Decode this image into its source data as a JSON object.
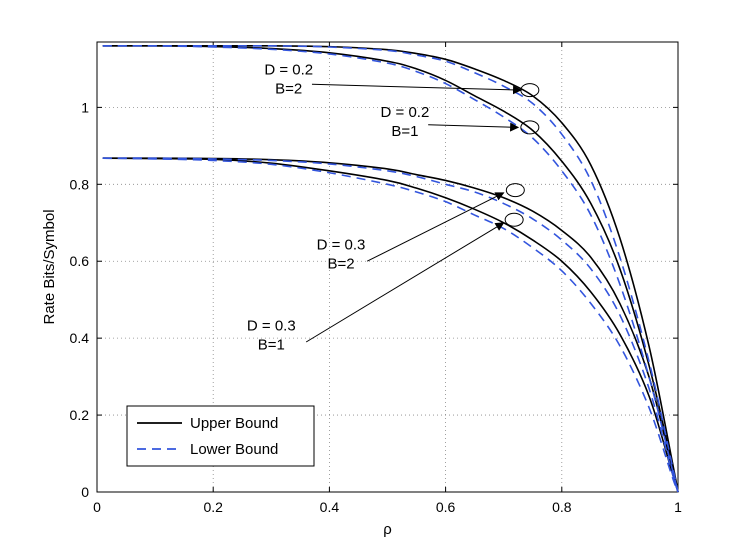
{
  "chart_data": {
    "type": "line",
    "xlabel": "ρ",
    "ylabel": "Rate Bits/Symbol",
    "xlim": [
      0,
      1
    ],
    "ylim": [
      0,
      1.17
    ],
    "x_ticks": [
      0,
      0.2,
      0.4,
      0.6,
      0.8,
      1
    ],
    "x_tick_labels": [
      "0",
      "0.2",
      "0.4",
      "0.6",
      "0.8",
      "1"
    ],
    "y_ticks": [
      0,
      0.2,
      0.4,
      0.6,
      0.8,
      1
    ],
    "y_tick_labels": [
      "0",
      "0.2",
      "0.4",
      "0.6",
      "0.8",
      "1"
    ],
    "grid": true,
    "legend_position": "bottom-left",
    "legend": [
      {
        "label": "Upper Bound",
        "style": "solid",
        "color": "#000000"
      },
      {
        "label": "Lower Bound",
        "style": "dashed",
        "color": "#3355dd"
      }
    ],
    "x": [
      0.01,
      0.1,
      0.2,
      0.3,
      0.4,
      0.5,
      0.55,
      0.6,
      0.65,
      0.7,
      0.75,
      0.8,
      0.85,
      0.9,
      0.95,
      0.99,
      1.0
    ],
    "series": [
      {
        "style": "solid",
        "color": "#000000",
        "values": [
          1.16,
          1.16,
          1.16,
          1.16,
          1.158,
          1.15,
          1.14,
          1.125,
          1.1,
          1.07,
          1.03,
          0.96,
          0.85,
          0.66,
          0.38,
          0.08,
          0.0
        ]
      },
      {
        "style": "solid",
        "color": "#000000",
        "values": [
          1.16,
          1.16,
          1.158,
          1.153,
          1.142,
          1.12,
          1.1,
          1.07,
          1.03,
          0.99,
          0.94,
          0.86,
          0.75,
          0.58,
          0.33,
          0.07,
          0.0
        ]
      },
      {
        "style": "solid",
        "color": "#000000",
        "values": [
          0.868,
          0.868,
          0.867,
          0.864,
          0.856,
          0.84,
          0.825,
          0.81,
          0.79,
          0.765,
          0.73,
          0.68,
          0.61,
          0.49,
          0.3,
          0.06,
          0.0
        ]
      },
      {
        "style": "solid",
        "color": "#000000",
        "values": [
          0.868,
          0.867,
          0.865,
          0.855,
          0.835,
          0.81,
          0.79,
          0.765,
          0.735,
          0.7,
          0.655,
          0.6,
          0.52,
          0.41,
          0.25,
          0.05,
          0.0
        ]
      },
      {
        "style": "dashed",
        "color": "#3355dd",
        "values": [
          1.16,
          1.16,
          1.16,
          1.16,
          1.157,
          1.148,
          1.136,
          1.12,
          1.09,
          1.055,
          1.01,
          0.93,
          0.81,
          0.61,
          0.34,
          0.07,
          0.0
        ]
      },
      {
        "style": "dashed",
        "color": "#3355dd",
        "values": [
          1.16,
          1.16,
          1.157,
          1.151,
          1.139,
          1.115,
          1.093,
          1.062,
          1.02,
          0.975,
          0.92,
          0.835,
          0.72,
          0.54,
          0.3,
          0.06,
          0.0
        ]
      },
      {
        "style": "dashed",
        "color": "#3355dd",
        "values": [
          0.868,
          0.868,
          0.866,
          0.862,
          0.853,
          0.835,
          0.82,
          0.8,
          0.78,
          0.75,
          0.71,
          0.655,
          0.58,
          0.46,
          0.27,
          0.05,
          0.0
        ]
      },
      {
        "style": "dashed",
        "color": "#3355dd",
        "values": [
          0.868,
          0.866,
          0.862,
          0.852,
          0.83,
          0.8,
          0.78,
          0.755,
          0.72,
          0.685,
          0.635,
          0.575,
          0.49,
          0.38,
          0.22,
          0.04,
          0.0
        ]
      }
    ],
    "annotations": [
      {
        "lines": [
          "D = 0.2",
          "B=2"
        ],
        "text_at": [
          0.33,
          1.085
        ],
        "arrow_from": [
          0.37,
          1.06
        ],
        "arrow_to": [
          0.73,
          1.045
        ],
        "circle_at": [
          0.745,
          1.045
        ]
      },
      {
        "lines": [
          "D = 0.2",
          "B=1"
        ],
        "text_at": [
          0.53,
          0.975
        ],
        "arrow_from": [
          0.57,
          0.955
        ],
        "arrow_to": [
          0.725,
          0.948
        ],
        "circle_at": [
          0.745,
          0.948
        ]
      },
      {
        "lines": [
          "D = 0.3",
          "B=2"
        ],
        "text_at": [
          0.42,
          0.63
        ],
        "arrow_from": [
          0.465,
          0.6
        ],
        "arrow_to": [
          0.7,
          0.778
        ],
        "circle_at": [
          0.72,
          0.785
        ]
      },
      {
        "lines": [
          "D = 0.3",
          "B=1"
        ],
        "text_at": [
          0.3,
          0.42
        ],
        "arrow_from": [
          0.36,
          0.39
        ],
        "arrow_to": [
          0.7,
          0.7
        ],
        "circle_at": [
          0.718,
          0.708
        ]
      }
    ]
  }
}
